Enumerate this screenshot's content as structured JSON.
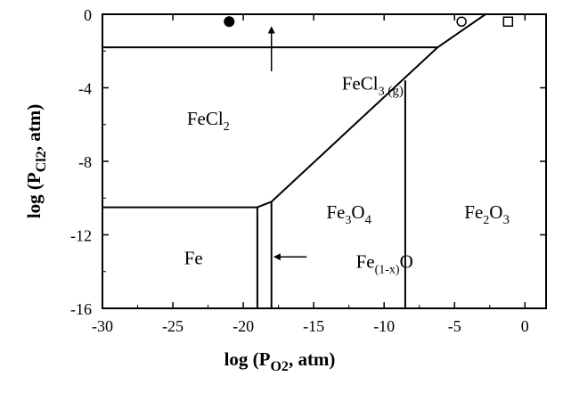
{
  "chart_data": {
    "type": "phase-diagram",
    "xlabel": {
      "prefix": "log (",
      "P": "P",
      "sub": "O2",
      "suffix": ", atm)"
    },
    "ylabel": {
      "prefix": "log (",
      "P": "P",
      "sub": "Cl2",
      "suffix": ", atm)"
    },
    "xlim": [
      -30,
      1.5
    ],
    "ylim": [
      -16,
      0
    ],
    "xticks": [
      -30,
      -25,
      -20,
      -15,
      -10,
      -5,
      0
    ],
    "xtick_labels": [
      "-30",
      "-25",
      "-20",
      "-15",
      "-10",
      "-5",
      "0"
    ],
    "yticks": [
      0,
      -4,
      -8,
      -12,
      -16
    ],
    "ytick_labels": [
      "0",
      "-4",
      "-8",
      "-12",
      "-16"
    ],
    "boundaries": [
      {
        "name": "FeCl3-FeCl2",
        "points": [
          [
            -30,
            -1.8
          ],
          [
            -6.2,
            -1.8
          ]
        ]
      },
      {
        "name": "FeCl2-oxides",
        "points": [
          [
            -19,
            -10.5
          ],
          [
            -18,
            -10.2
          ],
          [
            -6.2,
            -1.8
          ],
          [
            -2.8,
            0
          ]
        ]
      },
      {
        "name": "FeCl2-Fe",
        "points": [
          [
            -30,
            -10.5
          ],
          [
            -19,
            -10.5
          ]
        ]
      },
      {
        "name": "Fe-Fe(1-x)O",
        "points": [
          [
            -19,
            -10.5
          ],
          [
            -19,
            -16
          ]
        ]
      },
      {
        "name": "Fe(1-x)O-Fe3O4",
        "points": [
          [
            -18,
            -10.2
          ],
          [
            -18,
            -16
          ]
        ]
      },
      {
        "name": "Fe3O4-Fe2O3",
        "points": [
          [
            -8.5,
            -3.6
          ],
          [
            -8.5,
            -16
          ]
        ]
      }
    ],
    "markers": [
      {
        "shape": "filled-circle",
        "x": -21,
        "y": -0.4
      },
      {
        "shape": "open-circle",
        "x": -4.5,
        "y": -0.4
      },
      {
        "shape": "open-square",
        "x": -1.2,
        "y": -0.4
      }
    ],
    "regions": [
      {
        "base": "FeCl",
        "sub": "2",
        "x": -24,
        "y": -6
      },
      {
        "base": "Fe",
        "x": -24.2,
        "y": -13.6
      },
      {
        "base": "Fe",
        "sub": "3",
        "base2": "O",
        "sub2": "4",
        "x": -14.1,
        "y": -11.1
      },
      {
        "base": "Fe",
        "sub": "2",
        "base2": "O",
        "sub2": "3",
        "x": -4.3,
        "y": -11.1
      }
    ],
    "annotations": [
      {
        "base": "FeCl",
        "sub": "3",
        "sub_g": " (g)",
        "x": -13,
        "y": -4.1,
        "arrow_from": [
          -18,
          -3.1
        ],
        "arrow_to": [
          -18,
          -0.7
        ]
      },
      {
        "base": "Fe",
        "sub": "(1-x)",
        "base2": "O",
        "x": -12,
        "y": -13.8,
        "arrow_from": [
          -15.5,
          -13.2
        ],
        "arrow_to": [
          -17.8,
          -13.2
        ]
      }
    ]
  }
}
